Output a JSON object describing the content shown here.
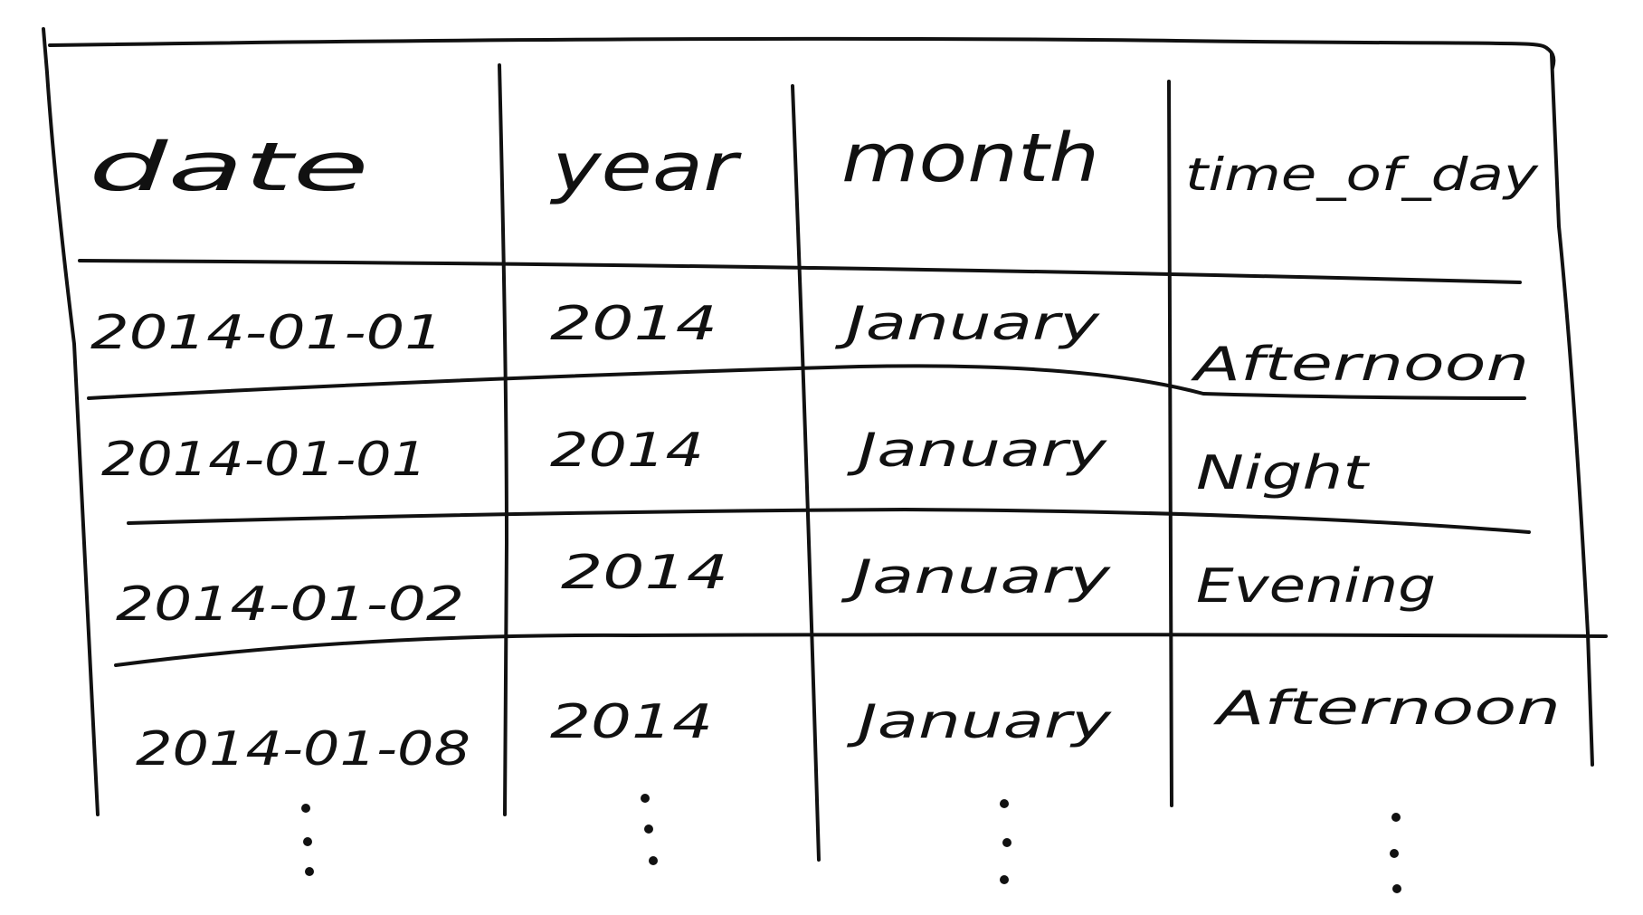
{
  "table": {
    "headers": [
      "date",
      "year",
      "month",
      "time_of_day"
    ],
    "rows": [
      [
        "2014-01-01",
        "2014",
        "January",
        "Afternoon"
      ],
      [
        "2014-01-01",
        "2014",
        "January",
        "Night"
      ],
      [
        "2014-01-02",
        "2014",
        "January",
        "Evening"
      ],
      [
        "2014-01-08",
        "2014",
        "January",
        "Afternoon"
      ]
    ],
    "continuation_marker": "⋮"
  },
  "colors": {
    "ink": "#111111",
    "paper": "#ffffff"
  }
}
